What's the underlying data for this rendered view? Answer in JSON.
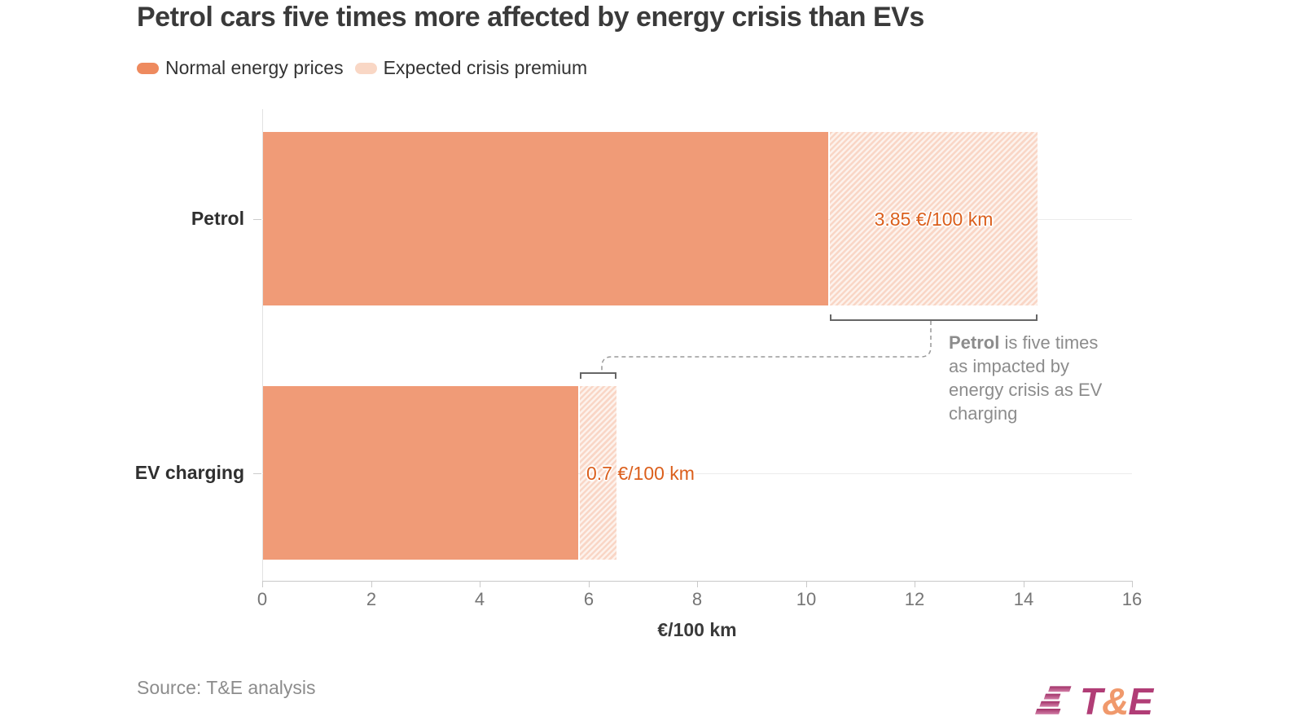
{
  "title": "Petrol cars five times more affected by energy crisis than EVs",
  "legend": [
    {
      "label": "Normal energy prices",
      "style": "solid"
    },
    {
      "label": "Expected crisis premium",
      "style": "hatch"
    }
  ],
  "chart_data": {
    "type": "bar",
    "orientation": "horizontal",
    "stacked": true,
    "categories": [
      "Petrol",
      "EV charging"
    ],
    "series": [
      {
        "name": "Normal energy prices",
        "values": [
          10.4,
          5.8
        ]
      },
      {
        "name": "Expected crisis premium",
        "values": [
          3.85,
          0.7
        ]
      }
    ],
    "segment_labels": [
      "3.85 €/100 km",
      "0.7 €/100 km"
    ],
    "xlabel": "€/100 km",
    "xlim": [
      0,
      16
    ],
    "xticks": [
      0,
      2,
      4,
      6,
      8,
      10,
      12,
      14,
      16
    ],
    "grid": "category-lines",
    "legend_position": "top-left"
  },
  "annotation": {
    "bold": "Petrol",
    "rest": " is five times as impacted by energy crisis as EV charging"
  },
  "source": "Source: T&E analysis",
  "logo": {
    "t": "T",
    "amp": "&",
    "e": "E"
  },
  "colors": {
    "bar_solid": "#f09b77",
    "legend_solid": "#ee8a5e",
    "legend_hatch": "#f9d7c5",
    "value_label": "#db5f1c",
    "logo_magenta": "#b13d76",
    "logo_orange": "#f0996c"
  }
}
